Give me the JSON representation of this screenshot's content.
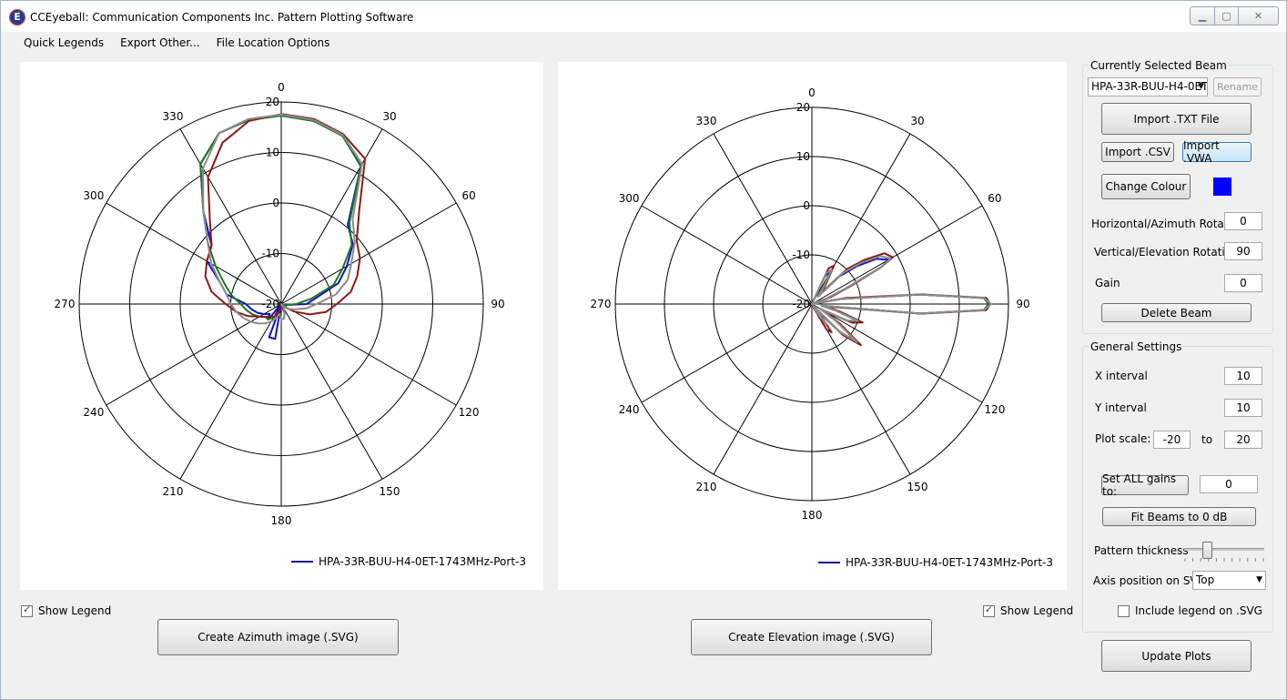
{
  "window": {
    "title": "CCEyeball: Communication Components Inc. Pattern Plotting Software",
    "icon": "E"
  },
  "menu": {
    "items": [
      "Quick Legends",
      "Export Other...",
      "File Location Options"
    ]
  },
  "azimuth_plot": {
    "angle_labels": [
      "0",
      "30",
      "60",
      "90",
      "120",
      "150",
      "180",
      "210",
      "240",
      "270",
      "300",
      "330"
    ],
    "radial_labels": [
      "20",
      "10",
      "0",
      "-10",
      "-20"
    ],
    "legend": "HPA-33R-BUU-H4-0ET-1743MHz-Port-3",
    "show_legend_label": "Show Legend",
    "create_button": "Create Azimuth image (.SVG)"
  },
  "elevation_plot": {
    "angle_labels": [
      "0",
      "30",
      "60",
      "90",
      "120",
      "150",
      "180",
      "210",
      "240",
      "270",
      "300",
      "330"
    ],
    "radial_labels": [
      "20",
      "10",
      "0",
      "-10",
      "-20"
    ],
    "legend": "HPA-33R-BUU-H4-0ET-1743MHz-Port-3",
    "show_legend_label": "Show Legend",
    "create_button": "Create Elevation image (.SVG)"
  },
  "chart_data": [
    {
      "type": "polar-line",
      "view": "azimuth",
      "angle_ticks": [
        0,
        30,
        60,
        90,
        120,
        150,
        180,
        210,
        240,
        270,
        300,
        330
      ],
      "radial_ticks": [
        20,
        10,
        0,
        -10,
        -20
      ],
      "rlim": [
        -20,
        20
      ],
      "legend": "HPA-33R-BUU-H4-0ET-1743MHz-Port-3",
      "series": [
        {
          "color": "#1010d0",
          "angles": [
            0,
            10,
            20,
            30,
            40,
            50,
            60,
            70,
            80,
            90,
            100,
            110,
            120,
            130,
            140,
            150,
            160,
            170,
            180,
            190,
            200,
            210,
            220,
            230,
            240,
            250,
            260,
            270,
            280,
            290,
            300,
            310,
            320,
            330,
            340,
            350
          ],
          "values": [
            17.3,
            16.8,
            15.5,
            11.5,
            0.5,
            -1.5,
            -5,
            -8,
            -13,
            -15,
            -19,
            -19,
            -20,
            -20,
            -20,
            -20,
            -18,
            -20,
            -20,
            -13,
            -13,
            -20,
            -16,
            -17,
            -16,
            -15,
            -14,
            -13,
            -9,
            -7,
            -3,
            -2,
            4,
            12,
            16,
            17
          ]
        },
        {
          "color": "#1a7a1a",
          "angles": [
            0,
            10,
            20,
            30,
            40,
            50,
            60,
            70,
            80,
            90,
            100,
            110,
            120,
            130,
            140,
            150,
            160,
            170,
            180,
            190,
            200,
            210,
            220,
            230,
            240,
            250,
            260,
            270,
            280,
            290,
            300,
            310,
            320,
            330,
            340,
            350
          ],
          "values": [
            17.3,
            16.8,
            15.4,
            11.6,
            1,
            -1.8,
            -6,
            -9,
            -14,
            -17,
            -19,
            -20,
            -20,
            -20,
            -20,
            -20,
            -20,
            -20,
            -20,
            -19,
            -18,
            -17,
            -16,
            -16,
            -15,
            -14,
            -13,
            -12,
            -10,
            -8,
            -5,
            -1,
            4,
            12,
            16,
            17
          ]
        },
        {
          "color": "#8a1a1a",
          "angles": [
            0,
            10,
            20,
            30,
            40,
            50,
            60,
            70,
            80,
            90,
            100,
            110,
            120,
            130,
            140,
            150,
            160,
            170,
            180,
            190,
            200,
            210,
            220,
            230,
            240,
            250,
            260,
            270,
            280,
            290,
            300,
            310,
            320,
            330,
            340,
            350
          ],
          "values": [
            17.6,
            17.2,
            15.8,
            13.2,
            4,
            -0.5,
            -2,
            -4,
            -6,
            -9,
            -11,
            -14,
            -17,
            -19,
            -20,
            -20,
            -20,
            -20,
            -20,
            -19,
            -18,
            -17,
            -17,
            -16,
            -15,
            -13,
            -11,
            -9,
            -6,
            -4,
            -3,
            -2,
            2,
            9,
            14,
            16.8
          ]
        },
        {
          "color": "#8c8c8c",
          "angles": [
            0,
            10,
            20,
            30,
            40,
            50,
            60,
            70,
            80,
            90,
            100,
            110,
            120,
            130,
            140,
            150,
            160,
            170,
            180,
            190,
            200,
            210,
            220,
            230,
            240,
            250,
            260,
            270,
            280,
            290,
            300,
            310,
            320,
            330,
            340,
            350
          ],
          "values": [
            17.5,
            17,
            15.6,
            12,
            2,
            -1,
            -4,
            -6,
            -9,
            -13,
            -15,
            -17,
            -18,
            -19,
            -20,
            -19,
            -18,
            -17,
            -17,
            -18,
            -17,
            -16,
            -15,
            -14,
            -13,
            -12,
            -11,
            -10,
            -9,
            -7,
            -4,
            -1,
            4,
            11,
            16,
            17.2
          ]
        }
      ]
    },
    {
      "type": "polar-line",
      "view": "elevation",
      "angle_ticks": [
        0,
        30,
        60,
        90,
        120,
        150,
        180,
        210,
        240,
        270,
        300,
        330
      ],
      "radial_ticks": [
        20,
        10,
        0,
        -10,
        -20
      ],
      "rlim": [
        -20,
        20
      ],
      "legend": "HPA-33R-BUU-H4-0ET-1743MHz-Port-3",
      "series": [
        {
          "color": "#1010d0",
          "angles": [
            20,
            25,
            30,
            35,
            40,
            45,
            50,
            55,
            60,
            62,
            65,
            70,
            75,
            80,
            85,
            88,
            90,
            92,
            95,
            100,
            105,
            110,
            115,
            120,
            125,
            130,
            135,
            140,
            145,
            150,
            155,
            160
          ],
          "values": [
            -20,
            -14,
            -12,
            -16,
            -18,
            -12,
            -8,
            -4,
            -2,
            -4,
            -12,
            -17,
            -20,
            -14,
            2,
            15,
            16,
            15,
            2,
            -18,
            -15,
            -10,
            -12,
            -18,
            -14,
            -8,
            -12,
            -19,
            -15,
            -18,
            -20,
            -20
          ]
        },
        {
          "color": "#1a7a1a",
          "angles": [
            20,
            25,
            30,
            35,
            40,
            45,
            50,
            55,
            60,
            62,
            65,
            70,
            75,
            80,
            85,
            88,
            90,
            92,
            95,
            100,
            105,
            110,
            115,
            120,
            125,
            130,
            135,
            140,
            145,
            150,
            155,
            160
          ],
          "values": [
            -20,
            -13,
            -12,
            -16,
            -18,
            -11,
            -7,
            -3,
            -1.5,
            -4,
            -12,
            -17,
            -20,
            -14,
            2,
            15,
            16,
            15,
            2,
            -18,
            -15,
            -10,
            -12,
            -18,
            -14,
            -8,
            -12,
            -19,
            -15,
            -17,
            -20,
            -20
          ]
        },
        {
          "color": "#8a1a1a",
          "angles": [
            20,
            25,
            30,
            35,
            40,
            45,
            50,
            55,
            60,
            62,
            65,
            70,
            75,
            80,
            85,
            88,
            90,
            92,
            95,
            100,
            105,
            110,
            115,
            120,
            125,
            130,
            135,
            140,
            145,
            150,
            155,
            160
          ],
          "values": [
            -20,
            -12,
            -11,
            -15,
            -17,
            -10,
            -6,
            -2,
            -1,
            -4,
            -11,
            -16,
            -20,
            -13,
            2.5,
            15.5,
            16.3,
            15.5,
            2.5,
            -17,
            -14,
            -9,
            -11,
            -17,
            -13,
            -7,
            -11,
            -18,
            -13,
            -14,
            -19,
            -20
          ]
        },
        {
          "color": "#8c8c8c",
          "angles": [
            20,
            25,
            30,
            35,
            40,
            45,
            50,
            55,
            60,
            62,
            65,
            70,
            75,
            80,
            85,
            88,
            90,
            92,
            95,
            100,
            105,
            110,
            115,
            120,
            125,
            130,
            135,
            140,
            145,
            150,
            155,
            160
          ],
          "values": [
            -20,
            -13,
            -12,
            -16,
            -18,
            -11,
            -7,
            -3,
            -1.5,
            -4,
            -12,
            -17,
            -20,
            -14,
            2,
            15,
            16.5,
            15,
            2,
            -18,
            -15,
            -10,
            -12,
            -18,
            -14,
            -8,
            -12,
            -19,
            -15,
            -18,
            -20,
            -20
          ]
        }
      ]
    }
  ],
  "beam_panel": {
    "group_label": "Currently Selected Beam",
    "beam_select": "HPA-33R-BUU-H4-0ET",
    "rename": "Rename",
    "import_txt": "Import .TXT File",
    "import_csv": "Import .CSV",
    "import_vwa": "Import .VWA",
    "change_colour": "Change Colour",
    "colour": "#0000ff",
    "horizontal_label": "Horizontal/Azimuth Rotation",
    "horizontal_value": "0",
    "vertical_label": "Vertical/Elevation Rotation",
    "vertical_value": "90",
    "gain_label": "Gain",
    "gain_value": "0",
    "delete_beam": "Delete Beam"
  },
  "settings_panel": {
    "group_label": "General Settings",
    "x_interval_label": "X interval",
    "x_interval_value": "10",
    "y_interval_label": "Y interval",
    "y_interval_value": "10",
    "plot_scale_label": "Plot scale:",
    "plot_scale_min": "-20",
    "to_label": "to",
    "plot_scale_max": "20",
    "set_all_gains": "Set ALL gains to:",
    "set_all_gains_value": "0",
    "fit_beams": "Fit Beams to 0 dB",
    "pattern_thickness_label": "Pattern thickness",
    "pattern_thickness": 0.27,
    "axis_position_label": "Axis position on SVG:",
    "axis_position_value": "Top",
    "include_legend_label": "Include legend on .SVG"
  },
  "update_plots": "Update Plots"
}
